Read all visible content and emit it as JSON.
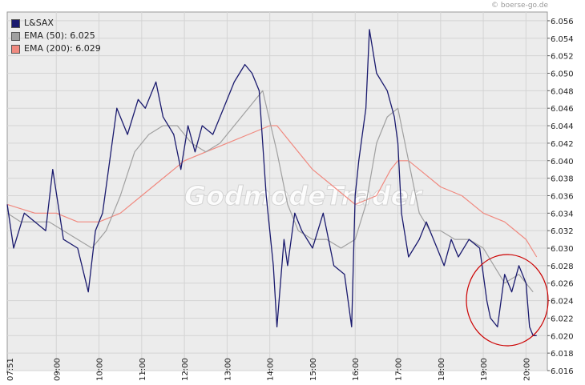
{
  "copyright": "© boerse-go.de",
  "watermark": "GodmodeTrader",
  "legend": [
    {
      "label": "L&SAX",
      "color": "#1a1a6e"
    },
    {
      "label": "EMA (50): 6.025",
      "color": "#a0a0a0"
    },
    {
      "label": "EMA (200): 6.029",
      "color": "#f08a80"
    }
  ],
  "colors": {
    "price": "#1a1a6e",
    "ema50": "#a0a0a0",
    "ema200": "#f08a80",
    "highlight_circle": "#cc0000",
    "grid": "#d4d4d4",
    "plot_bg": "#ececec"
  },
  "chart_data": {
    "type": "line",
    "ylim": [
      6.016,
      6.057
    ],
    "xlim": [
      "07:51",
      "20:30"
    ],
    "grid": true,
    "legend_placement": "top-left",
    "y_ticks": [
      "6.016",
      "6.018",
      "6.020",
      "6.022",
      "6.024",
      "6.026",
      "6.028",
      "6.030",
      "6.032",
      "6.034",
      "6.036",
      "6.038",
      "6.040",
      "6.042",
      "6.044",
      "6.046",
      "6.048",
      "6.050",
      "6.052",
      "6.054",
      "6.056"
    ],
    "x_ticks": [
      "07:51",
      "09:00",
      "10:00",
      "11:00",
      "12:00",
      "13:00",
      "14:00",
      "15:00",
      "16:00",
      "17:00",
      "18:00",
      "19:00",
      "20:00"
    ],
    "series": [
      {
        "name": "L&SAX",
        "x": [
          "07:51",
          "08:00",
          "08:15",
          "08:30",
          "08:45",
          "08:55",
          "09:10",
          "09:30",
          "09:45",
          "09:55",
          "10:05",
          "10:15",
          "10:25",
          "10:40",
          "10:55",
          "11:05",
          "11:20",
          "11:30",
          "11:45",
          "11:55",
          "12:05",
          "12:15",
          "12:25",
          "12:40",
          "12:55",
          "13:10",
          "13:25",
          "13:35",
          "13:45",
          "13:55",
          "14:05",
          "14:10",
          "14:15",
          "14:20",
          "14:25",
          "14:35",
          "14:45",
          "15:00",
          "15:15",
          "15:30",
          "15:45",
          "15:55",
          "16:00",
          "16:05",
          "16:15",
          "16:20",
          "16:30",
          "16:45",
          "16:55",
          "17:00",
          "17:05",
          "17:15",
          "17:30",
          "17:40",
          "17:45",
          "17:55",
          "18:05",
          "18:15",
          "18:25",
          "18:40",
          "18:55",
          "19:05",
          "19:10",
          "19:20",
          "19:30",
          "19:40",
          "19:50",
          "20:00",
          "20:05",
          "20:10",
          "20:15"
        ],
        "values": [
          6.035,
          6.03,
          6.034,
          6.033,
          6.032,
          6.039,
          6.031,
          6.03,
          6.025,
          6.032,
          6.034,
          6.04,
          6.046,
          6.043,
          6.047,
          6.046,
          6.049,
          6.045,
          6.043,
          6.039,
          6.044,
          6.041,
          6.044,
          6.043,
          6.046,
          6.049,
          6.051,
          6.05,
          6.048,
          6.036,
          6.028,
          6.021,
          6.026,
          6.031,
          6.028,
          6.034,
          6.032,
          6.03,
          6.034,
          6.028,
          6.027,
          6.021,
          6.036,
          6.04,
          6.046,
          6.055,
          6.05,
          6.048,
          6.045,
          6.042,
          6.034,
          6.029,
          6.031,
          6.033,
          6.032,
          6.03,
          6.028,
          6.031,
          6.029,
          6.031,
          6.03,
          6.024,
          6.022,
          6.021,
          6.027,
          6.025,
          6.028,
          6.026,
          6.021,
          6.02,
          6.02
        ]
      },
      {
        "name": "EMA (50)",
        "x": [
          "07:51",
          "08:10",
          "08:30",
          "08:50",
          "09:10",
          "09:30",
          "09:50",
          "10:10",
          "10:30",
          "10:50",
          "11:10",
          "11:30",
          "11:50",
          "12:10",
          "12:30",
          "12:50",
          "13:10",
          "13:30",
          "13:50",
          "14:10",
          "14:25",
          "14:40",
          "15:00",
          "15:20",
          "15:40",
          "16:00",
          "16:15",
          "16:30",
          "16:45",
          "17:00",
          "17:15",
          "17:30",
          "17:45",
          "18:00",
          "18:20",
          "18:40",
          "19:00",
          "19:15",
          "19:30",
          "19:50",
          "20:10"
        ],
        "values": [
          6.034,
          6.033,
          6.033,
          6.033,
          6.032,
          6.031,
          6.03,
          6.032,
          6.036,
          6.041,
          6.043,
          6.044,
          6.044,
          6.042,
          6.041,
          6.042,
          6.044,
          6.046,
          6.048,
          6.041,
          6.035,
          6.032,
          6.031,
          6.031,
          6.03,
          6.031,
          6.035,
          6.042,
          6.045,
          6.046,
          6.04,
          6.034,
          6.032,
          6.032,
          6.031,
          6.031,
          6.03,
          6.028,
          6.026,
          6.027,
          6.025
        ]
      },
      {
        "name": "EMA (200)",
        "x": [
          "07:51",
          "08:30",
          "09:00",
          "09:30",
          "10:00",
          "10:30",
          "11:00",
          "11:30",
          "12:00",
          "12:30",
          "13:00",
          "13:30",
          "14:00",
          "14:10",
          "14:30",
          "15:00",
          "15:30",
          "16:00",
          "16:30",
          "16:50",
          "17:00",
          "17:15",
          "17:30",
          "18:00",
          "18:30",
          "19:00",
          "19:30",
          "20:00",
          "20:15"
        ],
        "values": [
          6.035,
          6.034,
          6.034,
          6.033,
          6.033,
          6.034,
          6.036,
          6.038,
          6.04,
          6.041,
          6.042,
          6.043,
          6.044,
          6.044,
          6.042,
          6.039,
          6.037,
          6.035,
          6.036,
          6.039,
          6.04,
          6.04,
          6.039,
          6.037,
          6.036,
          6.034,
          6.033,
          6.031,
          6.029
        ]
      }
    ]
  }
}
